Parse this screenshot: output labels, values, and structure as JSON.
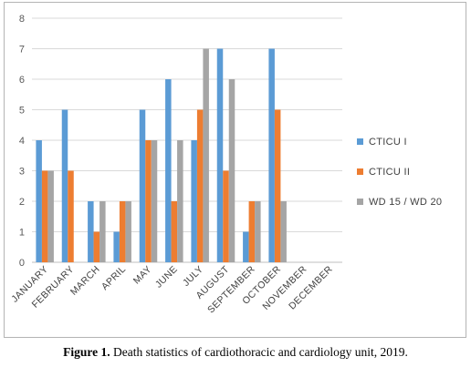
{
  "chart_data": {
    "type": "bar",
    "categories": [
      "JANUARY",
      "FEBRUARY",
      "MARCH",
      "APRIL",
      "MAY",
      "JUNE",
      "JULY",
      "AUGUST",
      "SEPTEMBER",
      "OCTOBER",
      "NOVEMBER",
      "DECEMBER"
    ],
    "series": [
      {
        "name": "CTICU I",
        "color": "#5b9bd5",
        "values": [
          4,
          5,
          2,
          1,
          5,
          6,
          4,
          7,
          1,
          7,
          0,
          0
        ]
      },
      {
        "name": "CTICU II",
        "color": "#ed7d31",
        "values": [
          3,
          3,
          1,
          2,
          4,
          2,
          5,
          3,
          2,
          5,
          0,
          0
        ]
      },
      {
        "name": "WD 15 / WD 20",
        "color": "#a5a5a5",
        "values": [
          3,
          0,
          2,
          2,
          4,
          4,
          7,
          6,
          2,
          2,
          0,
          0
        ]
      }
    ],
    "ylim": [
      0,
      8
    ],
    "yticks": [
      0,
      1,
      2,
      3,
      4,
      5,
      6,
      7,
      8
    ],
    "grid": true,
    "legend_position": "right"
  },
  "caption": {
    "label": "Figure 1.",
    "text": " Death statistics of cardiothoracic and cardiology unit, 2019."
  }
}
